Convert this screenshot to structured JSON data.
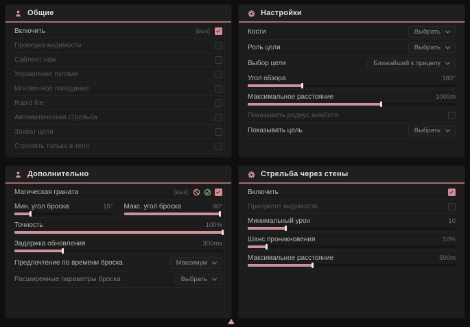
{
  "colors": {
    "accent_pink": "#d28e93",
    "accent_green": "#84b072",
    "header_underline": "#a36d71"
  },
  "icons": {
    "panel_general": "person-icon",
    "panel_settings": "gear-icon",
    "panel_additional": "person-icon",
    "panel_wallbang": "gear-icon",
    "grenade_flags": [
      "circle-x-icon",
      "circle-check-icon"
    ],
    "bottom_marker": "triangle-up-icon"
  },
  "panels": [
    {
      "title": "Общие",
      "icon": "person-icon",
      "rows": [
        {
          "label": "Включить",
          "prefix": "[вык]",
          "checked": true
        },
        {
          "label": "Проверка видимости",
          "checked": false
        },
        {
          "label": "Сайлент нож",
          "checked": false
        },
        {
          "label": "Управление пулями",
          "checked": false
        },
        {
          "label": "Мгновенное попадание",
          "checked": false
        },
        {
          "label": "Rapid fire",
          "checked": false
        },
        {
          "label": "Автоматическая стрельба",
          "checked": false
        },
        {
          "label": "Захват цели",
          "checked": false
        },
        {
          "label": "Стрелять только в тело",
          "checked": false
        }
      ]
    },
    {
      "title": "Настройки",
      "icon": "gear-icon",
      "rows": [
        {
          "label": "Кости",
          "select": "Выбрать"
        },
        {
          "label": "Роль цели",
          "select": "Выбрать"
        },
        {
          "label": "Выбор цели",
          "select": "Ближайший к прицелу"
        },
        {
          "label": "Угол обзора",
          "value": "180°",
          "fill": 26
        },
        {
          "label": "Максимальное расстояние",
          "value": "1000m",
          "fill": 64
        },
        {
          "label": "Показывать радиус аимбота",
          "checked": false
        },
        {
          "label": "Показывать цель",
          "select": "Выбрать"
        }
      ]
    },
    {
      "title": "Дополнительно",
      "icon": "person-icon",
      "rows": [
        {
          "label": "Магическая граната",
          "prefix": "[вык]",
          "checked": true
        },
        {
          "pair": [
            {
              "label": "Мин. угол броска",
              "value": "15°",
              "fill": 16
            },
            {
              "label": "Макс. угол броска",
              "value": "90°",
              "fill": 97
            }
          ]
        },
        {
          "label": "Точность",
          "value": "100%",
          "fill": 100
        },
        {
          "label": "Задержка обновления",
          "value": "300ms",
          "fill": 23
        },
        {
          "label": "Предпочтение по времени броска",
          "select": "Максимум"
        },
        {
          "label": "Расширенные параметры броска",
          "select": "Выбрать"
        }
      ]
    },
    {
      "title": "Стрельба через стены",
      "icon": "gear-icon",
      "rows": [
        {
          "label": "Включить",
          "checked": true
        },
        {
          "label": "Приоритет видимости",
          "checked": false
        },
        {
          "label": "Минимальный урон",
          "value": "10",
          "fill": 18
        },
        {
          "label": "Шанс проникновения",
          "value": "10%",
          "fill": 9
        },
        {
          "label": "Максимальное расстояние",
          "value": "500m",
          "fill": 31
        }
      ]
    }
  ]
}
